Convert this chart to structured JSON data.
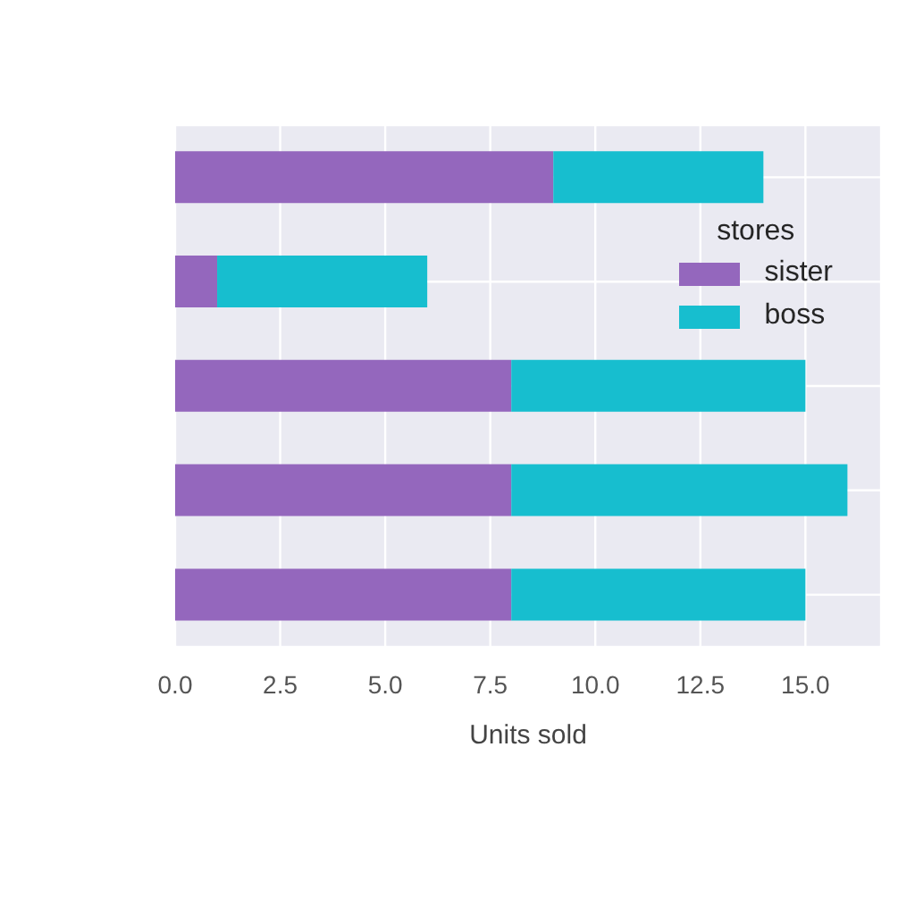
{
  "chart_data": {
    "type": "bar",
    "orientation": "horizontal",
    "stacked": true,
    "categories": [
      null,
      null,
      null,
      null,
      null
    ],
    "series": [
      {
        "name": "sister",
        "color": "#9467bd",
        "values": [
          9,
          1,
          8,
          8,
          8
        ]
      },
      {
        "name": "boss",
        "color": "#17becf",
        "values": [
          5,
          5,
          7,
          8,
          7
        ]
      }
    ],
    "xlabel": "Units sold",
    "legend_title": "stores",
    "legend": "top right",
    "grid": true,
    "tick_labels": "x",
    "xlim": [
      0,
      16.8
    ],
    "xticks": [
      {
        "value": 0,
        "label": "0.0"
      },
      2.5,
      {
        "value": 5,
        "label": "5.0"
      },
      7.5,
      {
        "value": 10,
        "label": "10.0"
      },
      12.5,
      {
        "value": 15,
        "label": "15.0"
      }
    ]
  }
}
